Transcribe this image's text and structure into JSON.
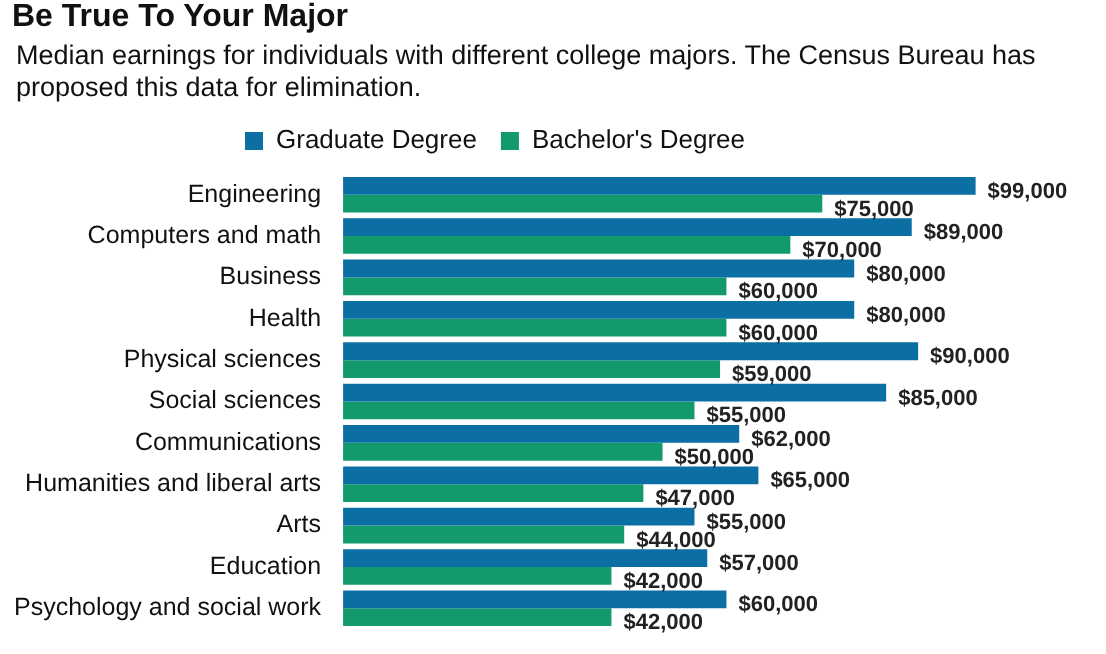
{
  "chart_data": {
    "type": "bar",
    "orientation": "horizontal",
    "title": "Be True To Your Major",
    "subtitle": "Median earnings for individuals with different college majors. The Census Bureau has proposed this data for elimination.",
    "categories": [
      "Engineering",
      "Computers and math",
      "Business",
      "Health",
      "Physical sciences",
      "Social sciences",
      "Communications",
      "Humanities and liberal arts",
      "Arts",
      "Education",
      "Psychology and social work"
    ],
    "series": [
      {
        "name": "Graduate Degree",
        "color": "#0b6fa4",
        "values": [
          99000,
          89000,
          80000,
          80000,
          90000,
          85000,
          62000,
          65000,
          55000,
          57000,
          60000
        ],
        "value_labels": [
          "$99,000",
          "$89,000",
          "$80,000",
          "$80,000",
          "$90,000",
          "$85,000",
          "$62,000",
          "$65,000",
          "$55,000",
          "$57,000",
          "$60,000"
        ]
      },
      {
        "name": "Bachelor's Degree",
        "color": "#139a6c",
        "values": [
          75000,
          70000,
          60000,
          60000,
          59000,
          55000,
          50000,
          47000,
          44000,
          42000,
          42000
        ],
        "value_labels": [
          "$75,000",
          "$70,000",
          "$60,000",
          "$60,000",
          "$59,000",
          "$55,000",
          "$50,000",
          "$47,000",
          "$44,000",
          "$42,000",
          "$42,000"
        ]
      }
    ],
    "legend": "top",
    "grid": false
  }
}
